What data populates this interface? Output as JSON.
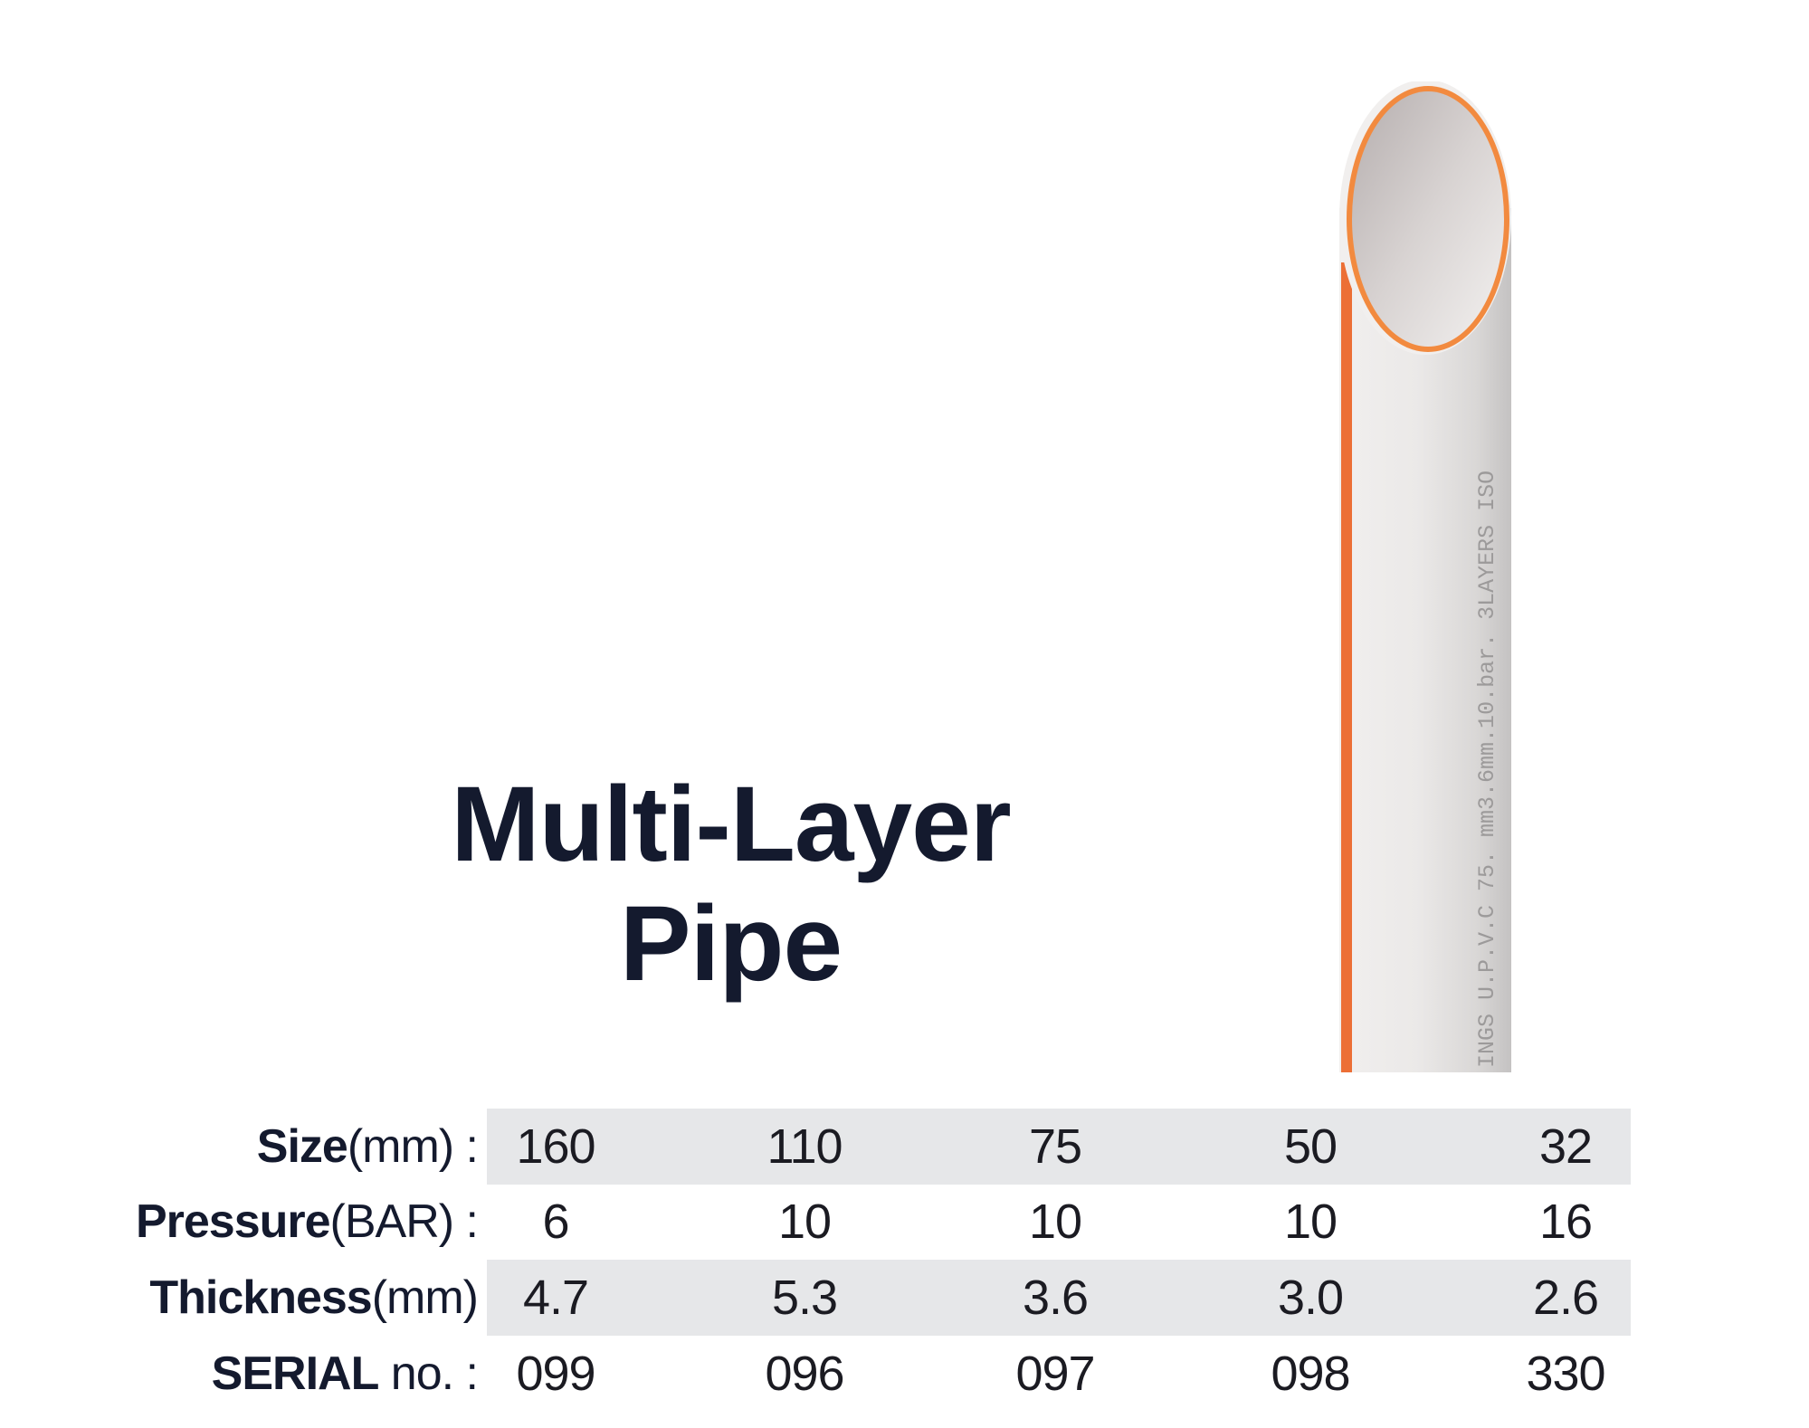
{
  "title": {
    "line1": "Multi-Layer",
    "line2": "Pipe"
  },
  "pipe_print": "INGS U.P.V.C  75. mm3.6mm.10.bar. 3LAYERS ISO",
  "colors": {
    "text": "#141a2e",
    "band": "#e6e7e9",
    "pipe_orange": "#f07a3a",
    "pipe_body": "#e9e7e6"
  },
  "table": {
    "rows": [
      {
        "label": "Size",
        "unit": "(mm) :",
        "values": [
          "160",
          "110",
          "75",
          "50",
          "32"
        ],
        "shaded": true
      },
      {
        "label": "Pressure",
        "unit": "(BAR) :",
        "values": [
          "6",
          "10",
          "10",
          "10",
          "16"
        ],
        "shaded": false
      },
      {
        "label": "Thickness",
        "unit": "(mm)",
        "values": [
          "4.7",
          "5.3",
          "3.6",
          "3.0",
          "2.6"
        ],
        "shaded": true
      },
      {
        "label": "SERIAL",
        "unit": " no. :",
        "values": [
          "099",
          "096",
          "097",
          "098",
          "330"
        ],
        "shaded": false
      }
    ]
  }
}
